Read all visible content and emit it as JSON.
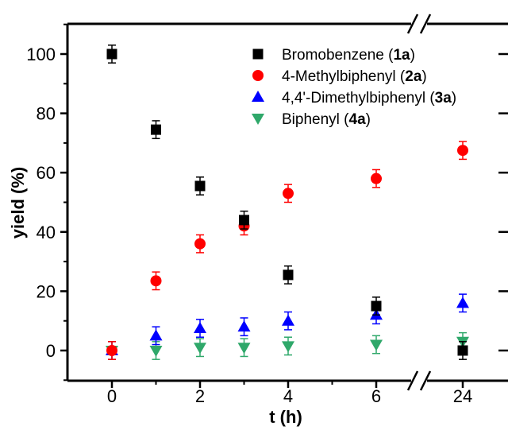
{
  "chart_data": {
    "type": "scatter",
    "xlabel": "t (h)",
    "ylabel": "yield (%)",
    "x_ticks": [
      "0",
      "2",
      "4",
      "6",
      "24"
    ],
    "y_ticks": [
      "0",
      "20",
      "40",
      "60",
      "80",
      "100"
    ],
    "xlim": [
      -1,
      7.2
    ],
    "x_break": {
      "after": 6.8,
      "then": 24
    },
    "ylim": [
      -10,
      110
    ],
    "grid": false,
    "legend_position": "top-right",
    "series": [
      {
        "name_parts": [
          {
            "text": "Bromobenzene (",
            "bold": false
          },
          {
            "text": "1a",
            "bold": true
          },
          {
            "text": ")",
            "bold": false
          }
        ],
        "marker": "square",
        "color": "#000000",
        "points": [
          {
            "x": 0,
            "y": 100,
            "err": 3
          },
          {
            "x": 1,
            "y": 74.5,
            "err": 3
          },
          {
            "x": 2,
            "y": 55.5,
            "err": 3
          },
          {
            "x": 3,
            "y": 44,
            "err": 3
          },
          {
            "x": 4,
            "y": 25.5,
            "err": 3
          },
          {
            "x": 6,
            "y": 15,
            "err": 3
          },
          {
            "x": 24,
            "y": 0,
            "err": 3
          }
        ]
      },
      {
        "name_parts": [
          {
            "text": "4-Methylbiphenyl (",
            "bold": false
          },
          {
            "text": "2a",
            "bold": true
          },
          {
            "text": ")",
            "bold": false
          }
        ],
        "marker": "circle",
        "color": "#ff0000",
        "points": [
          {
            "x": 0,
            "y": 0,
            "err": 3
          },
          {
            "x": 1,
            "y": 23.5,
            "err": 3
          },
          {
            "x": 2,
            "y": 36,
            "err": 3
          },
          {
            "x": 3,
            "y": 42,
            "err": 3
          },
          {
            "x": 4,
            "y": 53,
            "err": 3
          },
          {
            "x": 6,
            "y": 58,
            "err": 3
          },
          {
            "x": 24,
            "y": 67.5,
            "err": 3
          }
        ]
      },
      {
        "name_parts": [
          {
            "text": "4,4'-Dimethylbiphenyl (",
            "bold": false
          },
          {
            "text": "3a",
            "bold": true
          },
          {
            "text": ")",
            "bold": false
          }
        ],
        "marker": "triangle-up",
        "color": "#0000ff",
        "points": [
          {
            "x": 0,
            "y": 0,
            "err": 3
          },
          {
            "x": 1,
            "y": 5,
            "err": 3
          },
          {
            "x": 2,
            "y": 7.5,
            "err": 3
          },
          {
            "x": 3,
            "y": 8,
            "err": 3
          },
          {
            "x": 4,
            "y": 10,
            "err": 3
          },
          {
            "x": 6,
            "y": 12,
            "err": 3
          },
          {
            "x": 24,
            "y": 16,
            "err": 3
          }
        ]
      },
      {
        "name_parts": [
          {
            "text": "Biphenyl (",
            "bold": false
          },
          {
            "text": "4a",
            "bold": true
          },
          {
            "text": ")",
            "bold": false
          }
        ],
        "marker": "triangle-down",
        "color": "#2fa86a",
        "points": [
          {
            "x": 0,
            "y": 0,
            "err": 3
          },
          {
            "x": 1,
            "y": 0,
            "err": 3
          },
          {
            "x": 2,
            "y": 1,
            "err": 3
          },
          {
            "x": 3,
            "y": 1,
            "err": 3
          },
          {
            "x": 4,
            "y": 1.5,
            "err": 3
          },
          {
            "x": 6,
            "y": 2,
            "err": 3
          },
          {
            "x": 24,
            "y": 3,
            "err": 3
          }
        ]
      }
    ]
  }
}
